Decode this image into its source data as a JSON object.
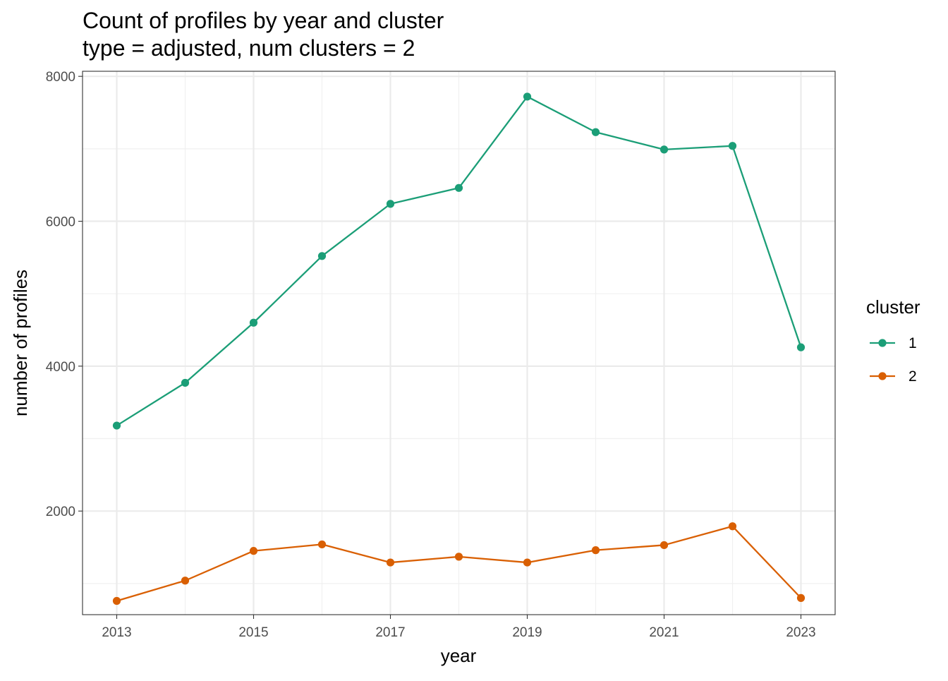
{
  "chart_data": {
    "type": "line",
    "title": "Count of profiles by year and cluster",
    "subtitle": "type = adjusted, num clusters = 2",
    "xlabel": "year",
    "ylabel": "number of profiles",
    "x": [
      2013,
      2014,
      2015,
      2016,
      2017,
      2018,
      2019,
      2020,
      2021,
      2022,
      2023
    ],
    "x_ticks": [
      "2013",
      "2015",
      "2017",
      "2019",
      "2021",
      "2023"
    ],
    "y_ticks": [
      "2000",
      "4000",
      "6000",
      "8000"
    ],
    "xlim": [
      2012.5,
      2023.5
    ],
    "ylim": [
      570,
      8070
    ],
    "grid": true,
    "legend": {
      "title": "cluster",
      "position": "right"
    },
    "series": [
      {
        "name": "1",
        "color": "#1b9e77",
        "values": [
          3180,
          3770,
          4600,
          5520,
          6240,
          6460,
          7720,
          7230,
          6990,
          7040,
          4260
        ]
      },
      {
        "name": "2",
        "color": "#d95f02",
        "values": [
          760,
          1040,
          1450,
          1540,
          1290,
          1370,
          1290,
          1460,
          1530,
          1790,
          800
        ]
      }
    ]
  }
}
